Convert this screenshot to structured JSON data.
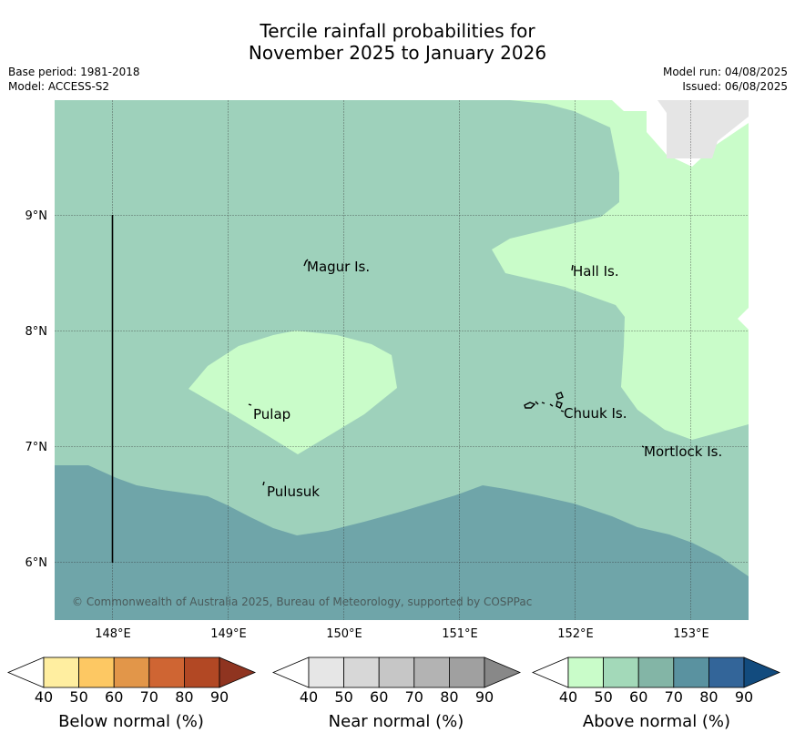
{
  "title": {
    "line1": "Tercile rainfall probabilities for",
    "line2": "November 2025 to January 2026"
  },
  "meta": {
    "base_period": "Base period: 1981-2018",
    "model": "Model: ACCESS-S2",
    "model_run": "Model run: 04/08/2025",
    "issued": "Issued: 06/08/2025"
  },
  "map": {
    "lat_ticks": [
      "9°N",
      "8°N",
      "7°N",
      "6°N"
    ],
    "lon_ticks": [
      "148°E",
      "149°E",
      "150°E",
      "151°E",
      "152°E",
      "153°E"
    ],
    "places": {
      "magur": "Magur Is.",
      "hall": "Hall Is.",
      "pulap": "Pulap",
      "chuuk": "Chuuk Is.",
      "mortlock": "Mortlock Is.",
      "pulusuk": "Pulusuk"
    },
    "copyright": "© Commonwealth of Australia 2025, Bureau of Meteorology, supported by COSPPac",
    "colors": {
      "above_50_60": "#9ed1bb",
      "above_40_50": "#c9fcc9",
      "above_60_70": "#6fa5a9",
      "no_data": "#e5e5e5"
    }
  },
  "legend": {
    "tick_labels": [
      "40",
      "50",
      "60",
      "70",
      "80",
      "90"
    ],
    "below": {
      "title": "Below normal (%)",
      "colors": [
        "#ffeea0",
        "#fdc863",
        "#e29649",
        "#cf6533",
        "#b24824",
        "#8f3420"
      ]
    },
    "near": {
      "title": "Near normal (%)",
      "colors": [
        "#e6e6e6",
        "#d7d7d7",
        "#c6c6c6",
        "#b3b3b3",
        "#a0a0a0",
        "#888888"
      ]
    },
    "above": {
      "title": "Above normal (%)",
      "colors": [
        "#c9fcc9",
        "#a3d9b9",
        "#83b5a6",
        "#5a92a0",
        "#336599",
        "#124b7e"
      ]
    }
  }
}
